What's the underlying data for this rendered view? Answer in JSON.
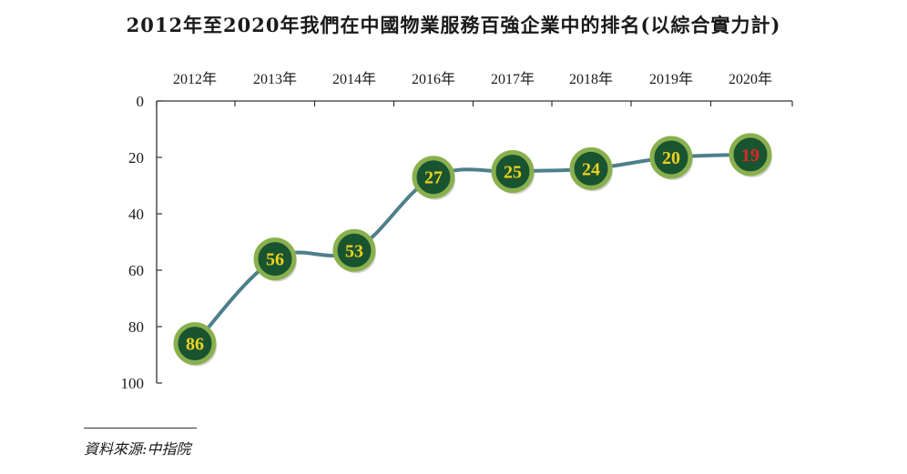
{
  "title": "2012年至2020年我們在中國物業服務百強企業中的排名(以綜合實力計)",
  "source": "資料來源:中指院",
  "chart_data": {
    "type": "line",
    "title": "2012年至2020年我們在中國物業服務百強企業中的排名(以綜合實力計)",
    "xlabel": "",
    "ylabel": "",
    "categories": [
      "2012年",
      "2013年",
      "2014年",
      "2016年",
      "2017年",
      "2018年",
      "2019年",
      "2020年"
    ],
    "values": [
      86,
      56,
      53,
      27,
      25,
      24,
      20,
      19
    ],
    "ylim": [
      0,
      100
    ],
    "y_inverted": true,
    "y_ticks": [
      0,
      20,
      40,
      60,
      80,
      100
    ],
    "x_axis_position": "top",
    "colors": {
      "line": "#4e7f8a",
      "marker_fill": "#195430",
      "marker_ring": "#8ab04e",
      "label": "#f0d020",
      "label_highlight": "#e0242a"
    }
  }
}
